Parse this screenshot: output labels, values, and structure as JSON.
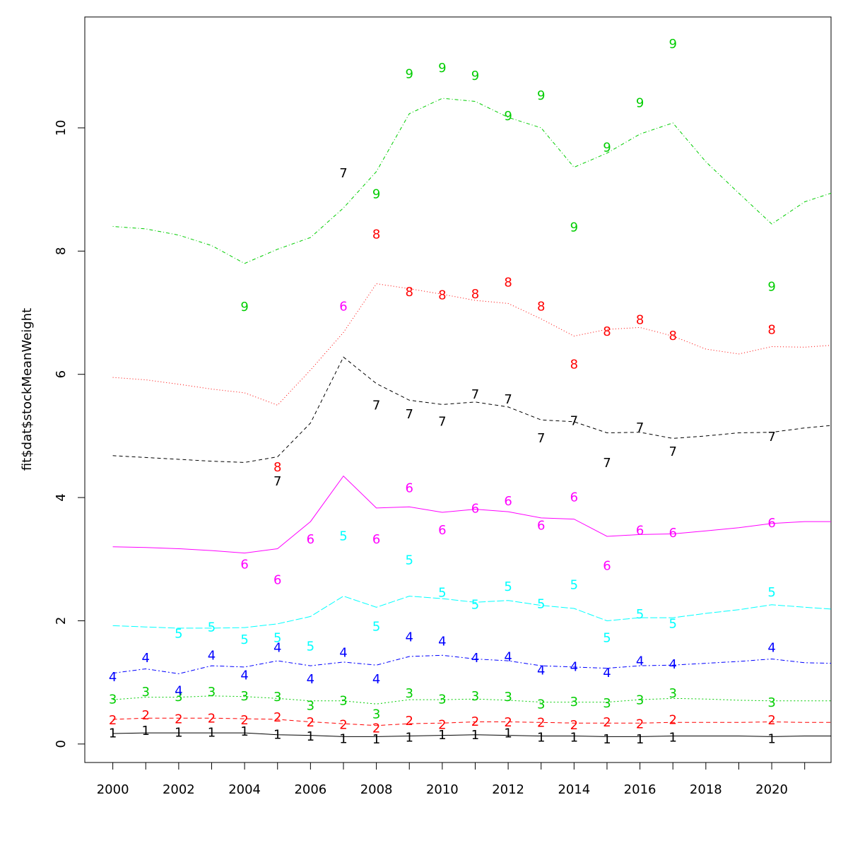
{
  "chart_data": {
    "type": "line",
    "ylabel": "fit$dat$stockMeanWeight",
    "xlabel": "",
    "xlim": [
      1999.15,
      2021.8
    ],
    "ylim": [
      -0.3,
      11.8
    ],
    "x_ticks": [
      2000,
      2001,
      2002,
      2003,
      2004,
      2005,
      2006,
      2007,
      2008,
      2009,
      2010,
      2011,
      2012,
      2013,
      2014,
      2015,
      2016,
      2017,
      2018,
      2019,
      2020,
      2021
    ],
    "x_tick_labels": [
      2000,
      2002,
      2004,
      2006,
      2008,
      2010,
      2012,
      2014,
      2016,
      2018,
      2020
    ],
    "y_ticks": [
      0,
      2,
      4,
      6,
      8,
      10
    ],
    "x": [
      2000,
      2001,
      2002,
      2003,
      2004,
      2005,
      2006,
      2007,
      2008,
      2009,
      2010,
      2011,
      2012,
      2013,
      2014,
      2015,
      2016,
      2017,
      2018,
      2019,
      2020,
      2021,
      2021.8
    ],
    "series": [
      {
        "label": "1",
        "color": "#000000",
        "dash": "none",
        "fitted": [
          0.17,
          0.18,
          0.18,
          0.18,
          0.18,
          0.15,
          0.14,
          0.12,
          0.12,
          0.13,
          0.14,
          0.15,
          0.14,
          0.13,
          0.13,
          0.12,
          0.12,
          0.13,
          0.13,
          0.13,
          0.12,
          0.13,
          0.13
        ],
        "observed": [
          [
            2000,
            0.17
          ],
          [
            2001,
            0.21
          ],
          [
            2002,
            0.18
          ],
          [
            2003,
            0.18
          ],
          [
            2004,
            0.2
          ],
          [
            2005,
            0.15
          ],
          [
            2006,
            0.12
          ],
          [
            2007,
            0.08
          ],
          [
            2008,
            0.07
          ],
          [
            2009,
            0.1
          ],
          [
            2010,
            0.14
          ],
          [
            2011,
            0.14
          ],
          [
            2012,
            0.17
          ],
          [
            2013,
            0.1
          ],
          [
            2014,
            0.1
          ],
          [
            2015,
            0.07
          ],
          [
            2016,
            0.07
          ],
          [
            2017,
            0.1
          ],
          [
            2020,
            0.08
          ]
        ]
      },
      {
        "label": "2",
        "color": "#ff0000",
        "dash": "6,4",
        "fitted": [
          0.4,
          0.42,
          0.42,
          0.42,
          0.41,
          0.4,
          0.36,
          0.33,
          0.3,
          0.33,
          0.34,
          0.36,
          0.36,
          0.35,
          0.34,
          0.34,
          0.34,
          0.35,
          0.35,
          0.35,
          0.36,
          0.35,
          0.35
        ],
        "observed": [
          [
            2000,
            0.38
          ],
          [
            2001,
            0.46
          ],
          [
            2002,
            0.4
          ],
          [
            2003,
            0.41
          ],
          [
            2004,
            0.38
          ],
          [
            2005,
            0.43
          ],
          [
            2006,
            0.35
          ],
          [
            2007,
            0.31
          ],
          [
            2008,
            0.25
          ],
          [
            2009,
            0.37
          ],
          [
            2010,
            0.31
          ],
          [
            2011,
            0.36
          ],
          [
            2012,
            0.35
          ],
          [
            2013,
            0.34
          ],
          [
            2014,
            0.3
          ],
          [
            2015,
            0.35
          ],
          [
            2016,
            0.32
          ],
          [
            2017,
            0.39
          ],
          [
            2020,
            0.38
          ]
        ]
      },
      {
        "label": "3",
        "color": "#00cd00",
        "dash": "2,3",
        "fitted": [
          0.72,
          0.76,
          0.76,
          0.78,
          0.77,
          0.74,
          0.7,
          0.7,
          0.65,
          0.72,
          0.72,
          0.73,
          0.71,
          0.68,
          0.68,
          0.68,
          0.72,
          0.74,
          0.73,
          0.71,
          0.7,
          0.7,
          0.7
        ],
        "observed": [
          [
            2000,
            0.72
          ],
          [
            2001,
            0.84
          ],
          [
            2002,
            0.76
          ],
          [
            2003,
            0.84
          ],
          [
            2004,
            0.77
          ],
          [
            2005,
            0.76
          ],
          [
            2006,
            0.62
          ],
          [
            2007,
            0.7
          ],
          [
            2008,
            0.48
          ],
          [
            2009,
            0.82
          ],
          [
            2010,
            0.72
          ],
          [
            2011,
            0.77
          ],
          [
            2012,
            0.76
          ],
          [
            2013,
            0.64
          ],
          [
            2014,
            0.68
          ],
          [
            2015,
            0.66
          ],
          [
            2016,
            0.71
          ],
          [
            2017,
            0.82
          ],
          [
            2020,
            0.67
          ]
        ]
      },
      {
        "label": "4",
        "color": "#0000ff",
        "dash": "6,3,2,3",
        "fitted": [
          1.15,
          1.22,
          1.14,
          1.27,
          1.25,
          1.35,
          1.27,
          1.33,
          1.28,
          1.42,
          1.44,
          1.38,
          1.35,
          1.27,
          1.25,
          1.23,
          1.27,
          1.28,
          1.31,
          1.34,
          1.38,
          1.32,
          1.31
        ],
        "observed": [
          [
            2000,
            1.08
          ],
          [
            2001,
            1.39
          ],
          [
            2002,
            0.86
          ],
          [
            2003,
            1.43
          ],
          [
            2004,
            1.11
          ],
          [
            2005,
            1.56
          ],
          [
            2006,
            1.05
          ],
          [
            2007,
            1.48
          ],
          [
            2008,
            1.05
          ],
          [
            2009,
            1.73
          ],
          [
            2010,
            1.66
          ],
          [
            2011,
            1.39
          ],
          [
            2012,
            1.41
          ],
          [
            2013,
            1.19
          ],
          [
            2014,
            1.25
          ],
          [
            2015,
            1.15
          ],
          [
            2016,
            1.34
          ],
          [
            2017,
            1.29
          ],
          [
            2020,
            1.56
          ]
        ]
      },
      {
        "label": "5",
        "color": "#00ffff",
        "dash": "10,3",
        "fitted": [
          1.92,
          1.9,
          1.88,
          1.88,
          1.89,
          1.95,
          2.07,
          2.4,
          2.22,
          2.4,
          2.36,
          2.3,
          2.33,
          2.25,
          2.2,
          2.0,
          2.05,
          2.05,
          2.12,
          2.18,
          2.26,
          2.22,
          2.19
        ],
        "observed": [
          [
            2002,
            1.79
          ],
          [
            2003,
            1.89
          ],
          [
            2004,
            1.69
          ],
          [
            2005,
            1.72
          ],
          [
            2006,
            1.58
          ],
          [
            2007,
            3.37
          ],
          [
            2008,
            1.9
          ],
          [
            2009,
            2.98
          ],
          [
            2010,
            2.45
          ],
          [
            2011,
            2.26
          ],
          [
            2012,
            2.55
          ],
          [
            2013,
            2.27
          ],
          [
            2014,
            2.58
          ],
          [
            2015,
            1.72
          ],
          [
            2016,
            2.1
          ],
          [
            2017,
            1.95
          ],
          [
            2020,
            2.46
          ]
        ]
      },
      {
        "label": "6",
        "color": "#ff00ff",
        "dash": "none",
        "fitted": [
          3.2,
          3.19,
          3.17,
          3.14,
          3.1,
          3.17,
          3.61,
          4.35,
          3.83,
          3.85,
          3.76,
          3.81,
          3.77,
          3.67,
          3.65,
          3.37,
          3.4,
          3.41,
          3.46,
          3.51,
          3.58,
          3.61,
          3.61
        ],
        "observed": [
          [
            2004,
            2.91
          ],
          [
            2005,
            2.66
          ],
          [
            2006,
            3.32
          ],
          [
            2007,
            7.1
          ],
          [
            2008,
            3.32
          ],
          [
            2009,
            4.15
          ],
          [
            2010,
            3.47
          ],
          [
            2011,
            3.82
          ],
          [
            2012,
            3.94
          ],
          [
            2013,
            3.54
          ],
          [
            2014,
            4.0
          ],
          [
            2015,
            2.89
          ],
          [
            2016,
            3.46
          ],
          [
            2017,
            3.42
          ],
          [
            2020,
            3.58
          ]
        ]
      },
      {
        "label": "7",
        "color": "#000000",
        "dash": "5,4",
        "fitted": [
          4.68,
          4.65,
          4.62,
          4.59,
          4.57,
          4.66,
          5.21,
          6.28,
          5.85,
          5.58,
          5.51,
          5.55,
          5.47,
          5.26,
          5.23,
          5.05,
          5.06,
          4.96,
          5.0,
          5.05,
          5.06,
          5.13,
          5.17
        ],
        "observed": [
          [
            2005,
            4.26
          ],
          [
            2007,
            9.26
          ],
          [
            2008,
            5.49
          ],
          [
            2009,
            5.35
          ],
          [
            2010,
            5.23
          ],
          [
            2011,
            5.67
          ],
          [
            2012,
            5.59
          ],
          [
            2013,
            4.96
          ],
          [
            2014,
            5.24
          ],
          [
            2015,
            4.56
          ],
          [
            2016,
            5.13
          ],
          [
            2017,
            4.74
          ],
          [
            2020,
            4.98
          ]
        ]
      },
      {
        "label": "8",
        "color": "#ff0000",
        "dash": "1,3",
        "fitted": [
          5.95,
          5.91,
          5.84,
          5.76,
          5.7,
          5.5,
          6.07,
          6.68,
          7.47,
          7.39,
          7.3,
          7.2,
          7.15,
          6.9,
          6.62,
          6.73,
          6.76,
          6.62,
          6.41,
          6.33,
          6.45,
          6.44,
          6.47
        ],
        "observed": [
          [
            2005,
            4.49
          ],
          [
            2008,
            8.27
          ],
          [
            2009,
            7.33
          ],
          [
            2010,
            7.28
          ],
          [
            2011,
            7.3
          ],
          [
            2012,
            7.49
          ],
          [
            2013,
            7.1
          ],
          [
            2014,
            6.16
          ],
          [
            2015,
            6.69
          ],
          [
            2016,
            6.88
          ],
          [
            2017,
            6.62
          ],
          [
            2020,
            6.72
          ]
        ]
      },
      {
        "label": "9",
        "color": "#00cd00",
        "dash": "1,3,5,3",
        "fitted": [
          8.4,
          8.36,
          8.26,
          8.09,
          7.8,
          8.03,
          8.22,
          8.7,
          9.29,
          10.23,
          10.48,
          10.43,
          10.17,
          10.0,
          9.36,
          9.59,
          9.9,
          10.08,
          9.45,
          8.94,
          8.44,
          8.8,
          8.94
        ],
        "observed": [
          [
            2004,
            7.09
          ],
          [
            2008,
            8.92
          ],
          [
            2009,
            10.87
          ],
          [
            2010,
            10.97
          ],
          [
            2011,
            10.84
          ],
          [
            2012,
            10.19
          ],
          [
            2013,
            10.52
          ],
          [
            2014,
            8.38
          ],
          [
            2015,
            9.68
          ],
          [
            2016,
            10.4
          ],
          [
            2017,
            11.36
          ],
          [
            2020,
            7.42
          ]
        ]
      }
    ]
  }
}
